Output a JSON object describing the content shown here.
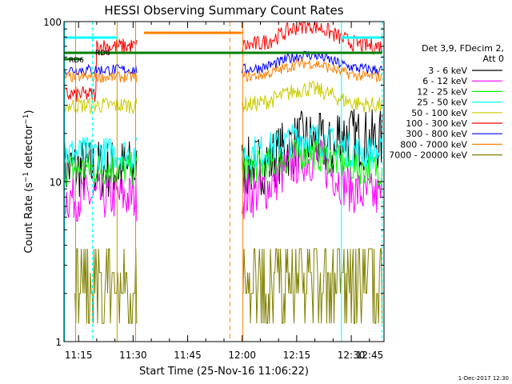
{
  "chart_data": {
    "type": "line",
    "title": "HESSI Observing Summary Count Rates",
    "xlabel": "Start Time (25-Nov-16 11:06:22)",
    "ylabel": "Count Rate (s⁻¹ detector⁻¹)",
    "ylabel_parts": {
      "main": "Count Rate (s",
      "sup1": "−1",
      "mid": " detector",
      "sup2": "−1",
      "end": ")"
    },
    "y_scale": "log",
    "ylim": [
      1,
      100
    ],
    "y_ticks": [
      {
        "value": 1,
        "label": "1"
      },
      {
        "value": 10,
        "label": "10"
      },
      {
        "value": 100,
        "label": "100"
      }
    ],
    "x_range_minutes": [
      11.0,
      99.0
    ],
    "x_ticks": [
      {
        "minute": 15,
        "label": "11:15"
      },
      {
        "minute": 30,
        "label": "11:30"
      },
      {
        "minute": 45,
        "label": "11:45"
      },
      {
        "minute": 60,
        "label": "12:00"
      },
      {
        "minute": 75,
        "label": "12:15"
      },
      {
        "minute": 90,
        "label": "12:30"
      },
      {
        "minute": 105,
        "label": "12:45"
      }
    ],
    "legend": {
      "header_line1": "Det 3,9, FDecim 2,",
      "header_line2": "Att 0",
      "placement": "right"
    },
    "series": [
      {
        "name": "3 - 6 keV",
        "color": "#000000"
      },
      {
        "name": "6 - 12 keV",
        "color": "#ff00ff"
      },
      {
        "name": "12 - 25 keV",
        "color": "#00ff00"
      },
      {
        "name": "25 - 50 keV",
        "color": "#00ffff"
      },
      {
        "name": "50 - 100 keV",
        "color": "#cccc00"
      },
      {
        "name": "100 - 300 keV",
        "color": "#ff0000"
      },
      {
        "name": "300 - 800 keV",
        "color": "#0000ff"
      },
      {
        "name": "800 - 7000 keV",
        "color": "#ff8000"
      },
      {
        "name": "7000 - 20000 keV",
        "color": "#808000"
      }
    ],
    "annotations": [
      {
        "label": "RD6",
        "color": "#008000"
      },
      {
        "label": "RD6",
        "color": "#008000"
      }
    ],
    "data_gap_minutes": [
      31,
      60
    ]
  },
  "footer": {
    "date_stamp": "1-Dec-2017 12:30"
  }
}
